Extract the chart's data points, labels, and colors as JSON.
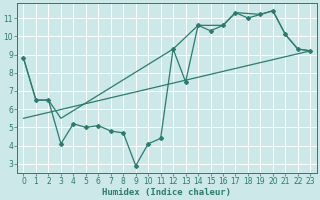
{
  "title": "",
  "xlabel": "Humidex (Indice chaleur)",
  "ylabel": "",
  "background_color": "#cce8e8",
  "line_color": "#2d7a6e",
  "grid_color": "#ffffff",
  "xlim": [
    -0.5,
    23.5
  ],
  "ylim": [
    2.5,
    11.8
  ],
  "yticks": [
    3,
    4,
    5,
    6,
    7,
    8,
    9,
    10,
    11
  ],
  "xticks": [
    0,
    1,
    2,
    3,
    4,
    5,
    6,
    7,
    8,
    9,
    10,
    11,
    12,
    13,
    14,
    15,
    16,
    17,
    18,
    19,
    20,
    21,
    22,
    23
  ],
  "data_x": [
    0,
    1,
    2,
    3,
    4,
    5,
    6,
    7,
    8,
    9,
    10,
    11,
    12,
    13,
    14,
    15,
    16,
    17,
    18,
    19,
    20,
    21,
    22,
    23
  ],
  "data_y": [
    8.8,
    6.5,
    6.5,
    4.1,
    5.2,
    5.0,
    5.1,
    4.8,
    4.7,
    2.9,
    4.1,
    4.4,
    9.3,
    7.5,
    10.6,
    10.3,
    10.6,
    11.3,
    11.0,
    11.2,
    11.4,
    10.1,
    9.3,
    9.2
  ],
  "trend_x": [
    0,
    23
  ],
  "trend_y": [
    5.5,
    9.2
  ],
  "smooth_x": [
    0,
    1,
    2,
    3,
    12,
    14,
    16,
    17,
    19,
    20,
    21,
    22,
    23
  ],
  "smooth_y": [
    8.8,
    6.5,
    6.5,
    5.5,
    9.3,
    10.6,
    10.6,
    11.3,
    11.2,
    11.4,
    10.1,
    9.3,
    9.2
  ]
}
